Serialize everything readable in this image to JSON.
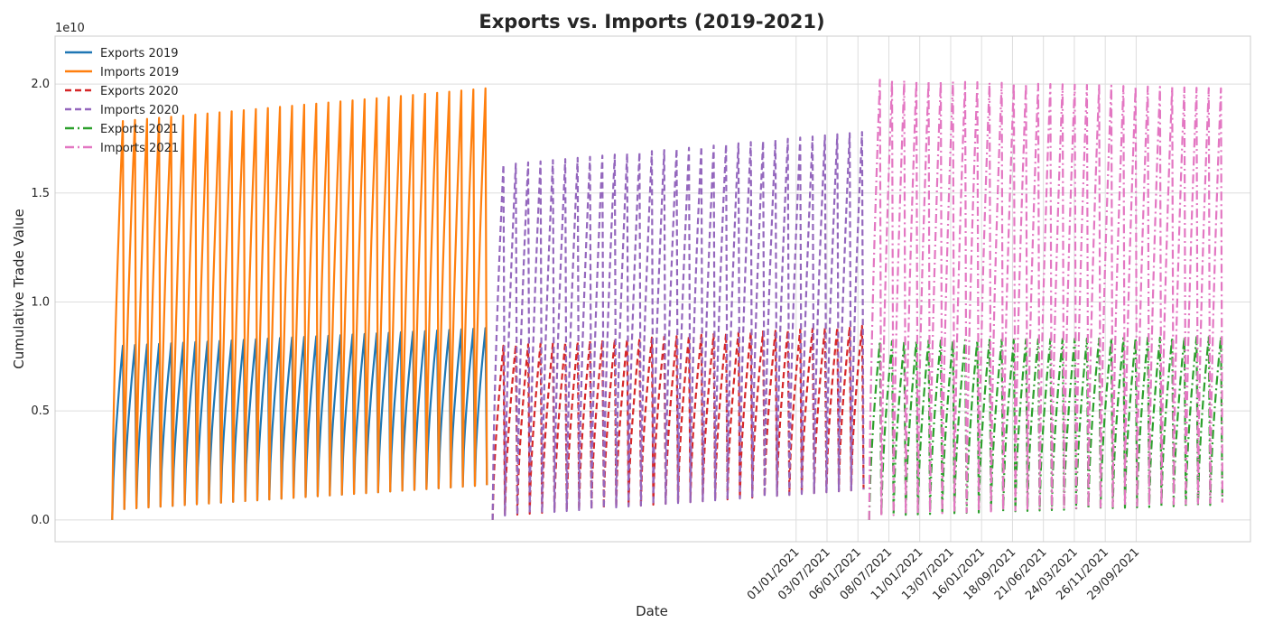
{
  "chart_data": {
    "type": "line",
    "title": "Exports vs. Imports (2019-2021)",
    "xlabel": "Date",
    "ylabel": "Cumulative Trade Value",
    "y_offset_label": "1e10",
    "yticks": [
      {
        "value": 0.0,
        "label": "0.0"
      },
      {
        "value": 0.5,
        "label": "0.5"
      },
      {
        "value": 1.0,
        "label": "1.0"
      },
      {
        "value": 1.5,
        "label": "1.5"
      },
      {
        "value": 2.0,
        "label": "2.0"
      }
    ],
    "ylim": [
      -0.1,
      2.22
    ],
    "xlim": [
      -61,
      1215
    ],
    "x_tick_labels": [
      {
        "value": 730,
        "label": "01/01/2021"
      },
      {
        "value": 763,
        "label": "03/07/2021"
      },
      {
        "value": 796,
        "label": "06/01/2021"
      },
      {
        "value": 829,
        "label": "08/07/2021"
      },
      {
        "value": 862,
        "label": "11/01/2021"
      },
      {
        "value": 895,
        "label": "13/07/2021"
      },
      {
        "value": 928,
        "label": "16/01/2021"
      },
      {
        "value": 961,
        "label": "18/09/2021"
      },
      {
        "value": 994,
        "label": "21/06/2021"
      },
      {
        "value": 1027,
        "label": "24/03/2021"
      },
      {
        "value": 1060,
        "label": "26/11/2021"
      },
      {
        "value": 1093,
        "label": "29/09/2021"
      }
    ],
    "grid": true,
    "legend_position": "top-left",
    "series": [
      {
        "name": "Exports 2019",
        "color": "#1f77b4",
        "dash": "solid",
        "x_range": [
          0,
          400
        ],
        "cycles": 31,
        "start": 0.0,
        "peak_start": 0.8,
        "peak_end": 0.88,
        "trough_start": 0.05,
        "trough_end": 0.16
      },
      {
        "name": "Imports 2019",
        "color": "#ff7f0e",
        "dash": "solid",
        "x_range": [
          0,
          400
        ],
        "cycles": 31,
        "start": 0.0,
        "peak_start": 1.83,
        "peak_end": 1.98,
        "trough_start": 0.05,
        "trough_end": 0.16
      },
      {
        "name": "Exports 2020",
        "color": "#d62728",
        "dash": "dashed",
        "x_range": [
          406,
          802
        ],
        "cycles": 30,
        "start": 0.0,
        "peak_start": 0.8,
        "peak_end": 0.89,
        "trough_start": 0.02,
        "trough_end": 0.14
      },
      {
        "name": "Imports 2020",
        "color": "#9467bd",
        "dash": "dashed",
        "x_range": [
          406,
          802
        ],
        "cycles": 30,
        "start": 0.0,
        "peak_start": 1.63,
        "peak_end": 1.78,
        "trough_start": 0.02,
        "trough_end": 0.14
      },
      {
        "name": "Exports 2021",
        "color": "#2ca02c",
        "dash": "dashdot",
        "x_range": [
          808,
          1185
        ],
        "cycles": 29,
        "start": 0.0,
        "peak_start": 0.82,
        "peak_end": 0.84,
        "trough_start": 0.02,
        "trough_end": 0.07
      },
      {
        "name": "Imports 2021",
        "color": "#e377c2",
        "dash": "dashdot",
        "x_range": [
          808,
          1185
        ],
        "cycles": 29,
        "start": 0.0,
        "peak_start": 2.02,
        "peak_end": 1.98,
        "trough_start": 0.02,
        "trough_end": 0.08
      }
    ]
  }
}
